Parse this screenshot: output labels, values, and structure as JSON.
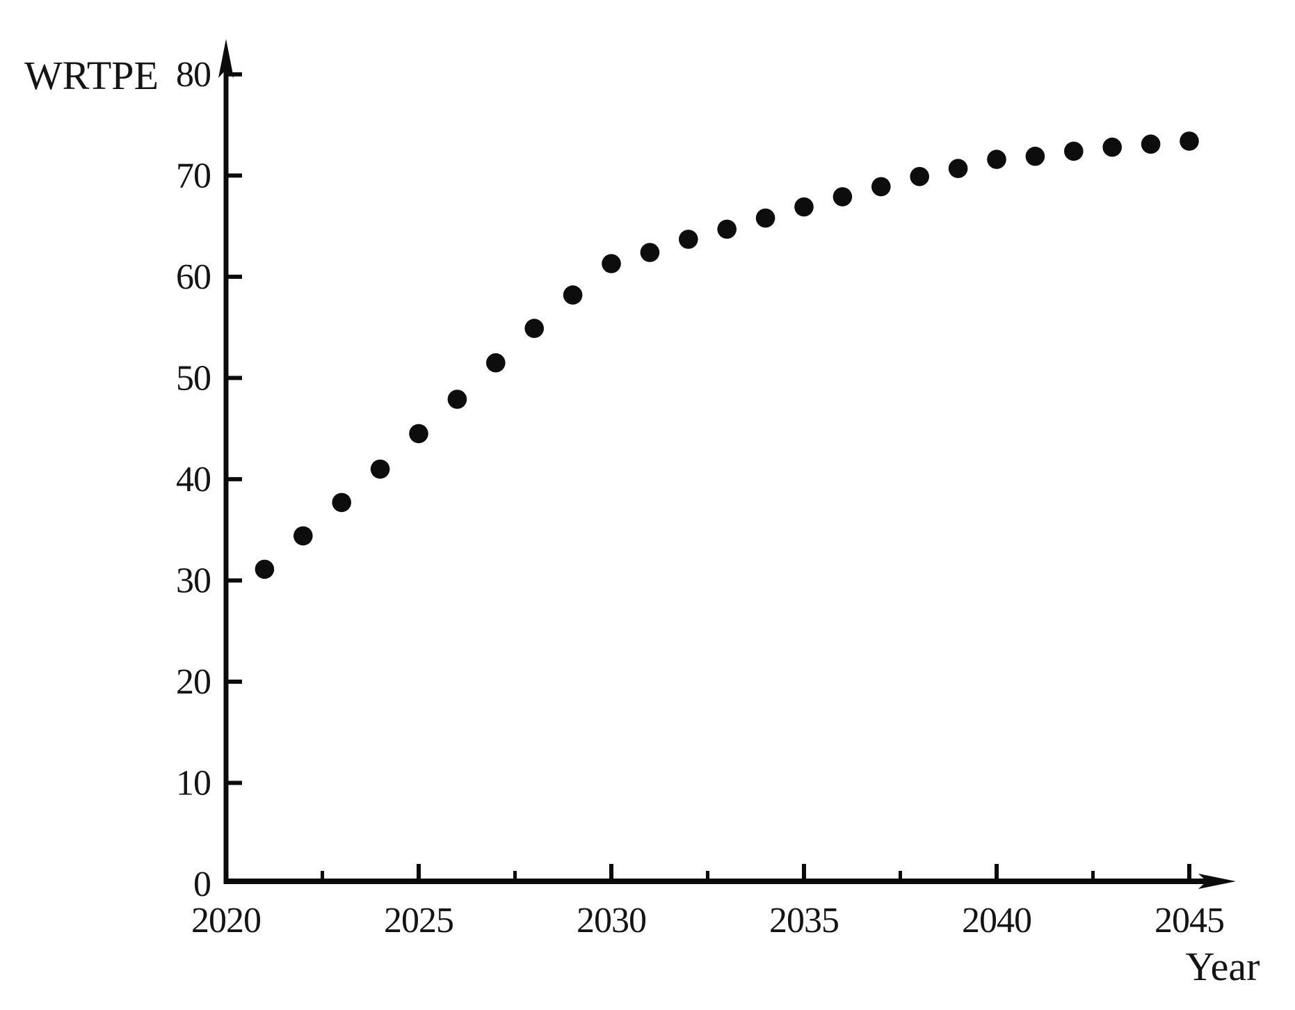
{
  "page": {
    "background": "#ffffff"
  },
  "chart_data": {
    "type": "scatter",
    "title": "",
    "xlabel": "Year",
    "ylabel": "WRTPE",
    "x": [
      2021,
      2022,
      2023,
      2024,
      2025,
      2026,
      2027,
      2028,
      2029,
      2030,
      2031,
      2032,
      2033,
      2034,
      2035,
      2036,
      2037,
      2038,
      2039,
      2040,
      2041,
      2042,
      2043,
      2044,
      2045
    ],
    "y": [
      31.1,
      34.4,
      37.7,
      41.0,
      44.5,
      47.9,
      51.5,
      54.9,
      58.2,
      61.3,
      62.4,
      63.7,
      64.7,
      65.8,
      66.9,
      67.9,
      68.9,
      69.9,
      70.7,
      71.6,
      71.9,
      72.4,
      72.8,
      73.1,
      73.4
    ],
    "xlim": [
      2020,
      2046.5
    ],
    "ylim": [
      0,
      82
    ],
    "x_major_ticks": [
      2020,
      2025,
      2030,
      2035,
      2040,
      2045
    ],
    "x_minor_ticks": [
      2022.5,
      2027.5,
      2032.5,
      2037.5,
      2042.5
    ],
    "y_major_ticks": [
      0,
      10,
      20,
      30,
      40,
      50,
      60,
      70,
      80
    ],
    "grid": false,
    "legend": null,
    "marker": {
      "shape": "circle",
      "color": "#0d0d0d",
      "radius_px": 13.8
    },
    "axis_color": "#0b0b0b"
  }
}
